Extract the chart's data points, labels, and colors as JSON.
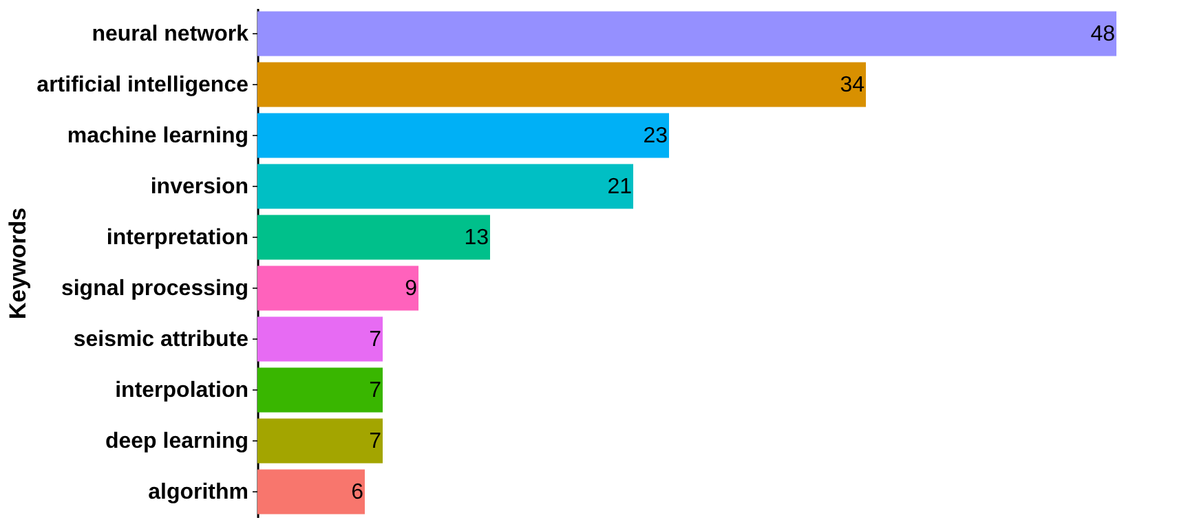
{
  "chart_data": {
    "type": "bar",
    "orientation": "horizontal",
    "ylabel": "Keywords",
    "tick_labels": "y",
    "data_labels": true,
    "legend": false,
    "categories": [
      "neural network",
      "artificial intelligence",
      "machine learning",
      "inversion",
      "interpretation",
      "signal processing",
      "seismic attribute",
      "interpolation",
      "deep learning",
      "algorithm"
    ],
    "values": [
      48,
      34,
      23,
      21,
      13,
      9,
      7,
      7,
      7,
      6
    ],
    "colors": [
      "#9590ff",
      "#d89000",
      "#00b0f6",
      "#00bfc4",
      "#00c08b",
      "#ff62bc",
      "#e76bf3",
      "#39b600",
      "#a3a500",
      "#f8766d"
    ]
  }
}
